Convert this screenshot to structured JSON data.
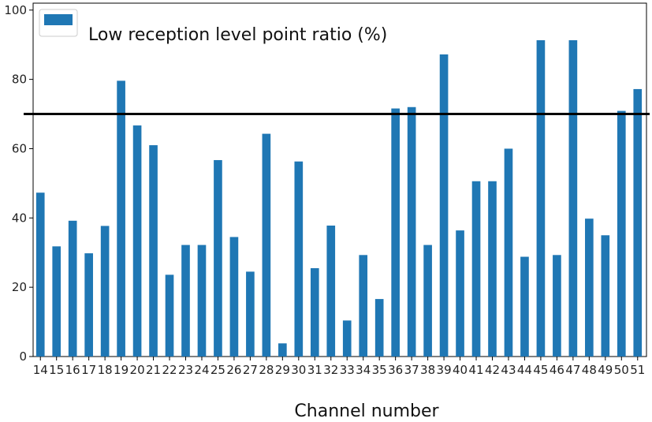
{
  "chart_data": {
    "type": "bar",
    "categories": [
      "14",
      "15",
      "16",
      "17",
      "18",
      "19",
      "20",
      "21",
      "22",
      "23",
      "24",
      "25",
      "26",
      "27",
      "28",
      "29",
      "30",
      "31",
      "32",
      "33",
      "34",
      "35",
      "36",
      "37",
      "38",
      "39",
      "40",
      "41",
      "42",
      "43",
      "44",
      "45",
      "46",
      "47",
      "48",
      "49",
      "50",
      "51"
    ],
    "series": [
      {
        "name": "Low reception level point ratio (%)",
        "values": [
          47.3,
          31.8,
          39.2,
          29.8,
          37.7,
          79.6,
          66.7,
          61.0,
          23.6,
          32.2,
          32.2,
          56.7,
          34.5,
          24.5,
          64.3,
          3.8,
          56.3,
          25.5,
          37.8,
          10.4,
          29.3,
          16.6,
          71.6,
          72.0,
          32.2,
          87.2,
          36.4,
          50.6,
          50.6,
          60.0,
          28.8,
          91.3,
          29.3,
          91.3,
          39.8,
          35.0,
          70.9,
          77.2
        ]
      }
    ],
    "xlabel": "Channel number",
    "ylabel": "",
    "ylim": [
      0,
      102
    ],
    "yticks": [
      0,
      20,
      40,
      60,
      80,
      100
    ],
    "threshold": 70,
    "legend_position": "top-left",
    "grid": false,
    "colors": {
      "bar": "#1f77b4",
      "threshold": "#000000",
      "axis": "#000000"
    }
  }
}
